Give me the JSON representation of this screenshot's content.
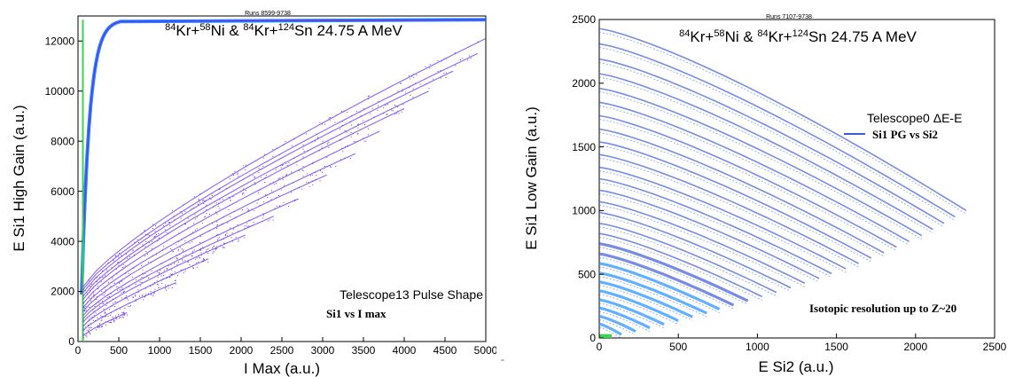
{
  "chart_data": [
    {
      "type": "heatmap",
      "title": "84Kr+58Ni & 84Kr+124Sn 24.75 A MeV",
      "title_parts": [
        "84",
        "Kr+",
        "58",
        "Ni & ",
        "84",
        "Kr+",
        "124",
        "Sn 24.75 A MeV"
      ],
      "runs": "Runs 8599-9738",
      "xlabel": "I Max (a.u.)",
      "ylabel": "E Si1 High Gain (a.u.)",
      "xlim": [
        0,
        5000
      ],
      "ylim": [
        0,
        13000
      ],
      "xticks": [
        0,
        500,
        1000,
        1500,
        2000,
        2500,
        3000,
        3500,
        4000,
        4500,
        5000
      ],
      "yticks": [
        0,
        2000,
        4000,
        6000,
        8000,
        10000,
        12000
      ],
      "annotation1": "Telescope13 Pulse Shape",
      "annotation2": "Si1 vs I max",
      "colors": {
        "points": "#6a34e6",
        "dense": "#1e90ff",
        "core": "#39d353"
      },
      "saturation_level": 12850,
      "bands": [
        {
          "x_end": 600,
          "y_end": 1150
        },
        {
          "x_end": 1200,
          "y_end": 2350
        },
        {
          "x_end": 1600,
          "y_end": 3300
        },
        {
          "x_end": 2050,
          "y_end": 4250
        },
        {
          "x_end": 2400,
          "y_end": 5000
        },
        {
          "x_end": 2700,
          "y_end": 5700
        },
        {
          "x_end": 3050,
          "y_end": 6650
        },
        {
          "x_end": 3400,
          "y_end": 7500
        },
        {
          "x_end": 3700,
          "y_end": 8400
        },
        {
          "x_end": 4000,
          "y_end": 9300
        },
        {
          "x_end": 4300,
          "y_end": 10000
        },
        {
          "x_end": 4600,
          "y_end": 10800
        },
        {
          "x_end": 4900,
          "y_end": 11500
        },
        {
          "x_end": 5000,
          "y_end": 12100
        }
      ]
    },
    {
      "type": "heatmap",
      "title": "84Kr+58Ni & 84Kr+124Sn 24.75 A MeV",
      "title_parts": [
        "84",
        "Kr+",
        "58",
        "Ni & ",
        "84",
        "Kr+",
        "124",
        "Sn 24.75 A MeV"
      ],
      "runs": "Runs 7107-9738",
      "xlabel": "E Si2 (a.u.)",
      "ylabel": "E Si1 Low Gain (a.u.)",
      "xlim": [
        0,
        2500
      ],
      "ylim": [
        0,
        2500
      ],
      "xticks": [
        0,
        500,
        1000,
        1500,
        2000,
        2500
      ],
      "yticks": [
        0,
        500,
        1000,
        1500,
        2000,
        2500
      ],
      "legend_title": "Telescope0 ΔE-E",
      "legend_entry": "Si1 PG vs Si2",
      "annotation": "Isotopic resolution up to Z~20",
      "colors": {
        "points": "#3d5bd6",
        "dense": "#1e90ff",
        "core": "#39d353"
      },
      "bands": [
        {
          "y0": 110,
          "x_end": 140
        },
        {
          "y0": 170,
          "x_end": 230
        },
        {
          "y0": 235,
          "x_end": 320
        },
        {
          "y0": 300,
          "x_end": 410
        },
        {
          "y0": 370,
          "x_end": 500
        },
        {
          "y0": 440,
          "x_end": 590
        },
        {
          "y0": 510,
          "x_end": 680
        },
        {
          "y0": 585,
          "x_end": 760
        },
        {
          "y0": 660,
          "x_end": 850
        },
        {
          "y0": 740,
          "x_end": 940
        },
        {
          "y0": 820,
          "x_end": 1030
        },
        {
          "y0": 900,
          "x_end": 1120
        },
        {
          "y0": 985,
          "x_end": 1210
        },
        {
          "y0": 1070,
          "x_end": 1300
        },
        {
          "y0": 1160,
          "x_end": 1390
        },
        {
          "y0": 1250,
          "x_end": 1470
        },
        {
          "y0": 1340,
          "x_end": 1560
        },
        {
          "y0": 1440,
          "x_end": 1640
        },
        {
          "y0": 1540,
          "x_end": 1720
        },
        {
          "y0": 1640,
          "x_end": 1800
        },
        {
          "y0": 1745,
          "x_end": 1880
        },
        {
          "y0": 1850,
          "x_end": 1960
        },
        {
          "y0": 1960,
          "x_end": 2040
        },
        {
          "y0": 2075,
          "x_end": 2110
        },
        {
          "y0": 2190,
          "x_end": 2180
        },
        {
          "y0": 2310,
          "x_end": 2250
        },
        {
          "y0": 2430,
          "x_end": 2320
        }
      ]
    }
  ],
  "stray_mark": "-"
}
